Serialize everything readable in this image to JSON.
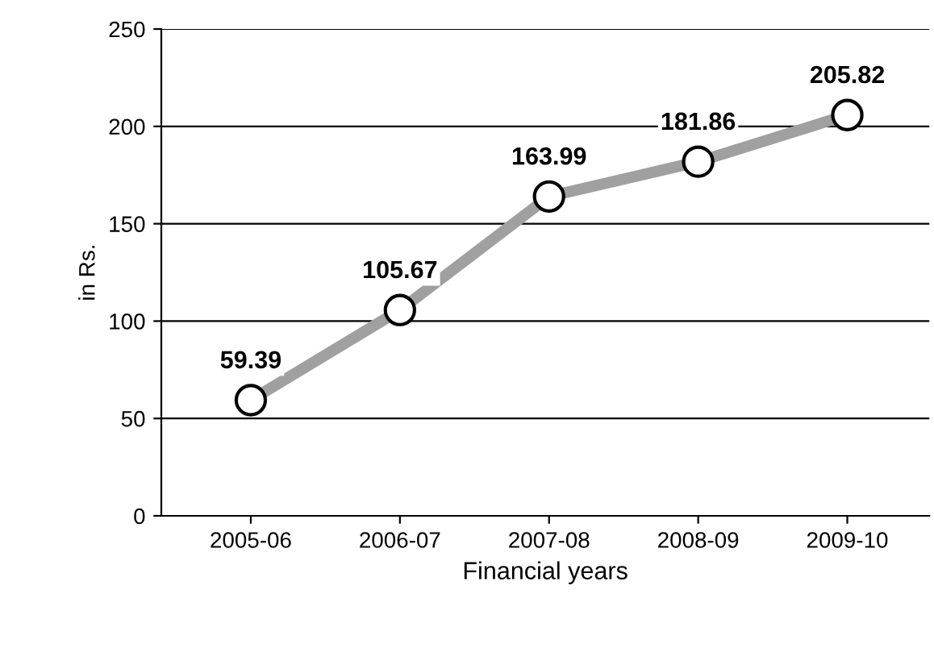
{
  "chart_data": {
    "type": "line",
    "xlabel": "Financial years",
    "ylabel": "in Rs.",
    "categories": [
      "2005-06",
      "2006-07",
      "2007-08",
      "2008-09",
      "2009-10"
    ],
    "series": [
      {
        "color": "#a0a0a0",
        "values": [
          59.39,
          105.67,
          163.99,
          181.86,
          205.82
        ]
      }
    ],
    "ylim": [
      0,
      250
    ],
    "yticks": [
      0,
      50,
      100,
      150,
      200,
      250
    ],
    "grid": "y",
    "marker": "circle",
    "line_style": "solid",
    "data_labels": true,
    "legend": false
  }
}
